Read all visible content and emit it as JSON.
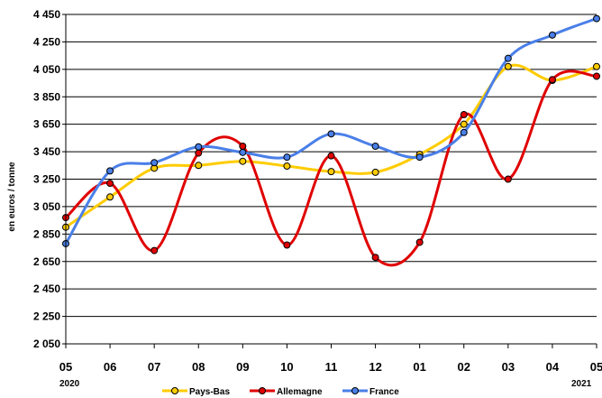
{
  "chart_data": {
    "type": "line",
    "title": "",
    "xlabel": "",
    "ylabel": "en euros / tonne",
    "categories": [
      "05",
      "06",
      "07",
      "08",
      "09",
      "10",
      "11",
      "12",
      "01",
      "02",
      "03",
      "04",
      "05"
    ],
    "year_labels": {
      "start": "2020",
      "end": "2021"
    },
    "ylim": [
      2050,
      4450
    ],
    "yticks": [
      2050,
      2250,
      2450,
      2650,
      2850,
      3050,
      3250,
      3450,
      3650,
      3850,
      4050,
      4250,
      4450
    ],
    "ytick_labels": [
      "2 050",
      "2 250",
      "2 450",
      "2 650",
      "2 850",
      "3 050",
      "3 250",
      "3 450",
      "3 650",
      "3 850",
      "4 050",
      "4 250",
      "4 450"
    ],
    "grid": true,
    "smooth": true,
    "legend_position": "bottom",
    "series": [
      {
        "name": "Pays-Bas",
        "color": "#FFCC00",
        "values": [
          2900,
          3120,
          3330,
          3350,
          3380,
          3345,
          3305,
          3300,
          3430,
          3650,
          4070,
          3970,
          4070
        ]
      },
      {
        "name": "Allemagne",
        "color": "#E00000",
        "values": [
          2970,
          3220,
          2730,
          3440,
          3490,
          2770,
          3420,
          2680,
          2790,
          3720,
          3250,
          3975,
          4000
        ]
      },
      {
        "name": "France",
        "color": "#4A7FE8",
        "values": [
          2780,
          3310,
          3370,
          3485,
          3445,
          3410,
          3580,
          3490,
          3410,
          3590,
          4130,
          4300,
          4420
        ]
      }
    ]
  }
}
